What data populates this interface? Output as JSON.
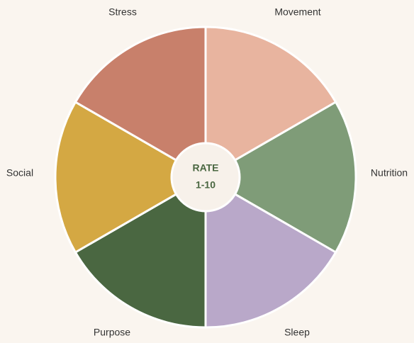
{
  "center": {
    "lines": [
      "RATE",
      "1-10"
    ]
  },
  "segments": [
    {
      "label": "Movement",
      "color": "#e8b49f"
    },
    {
      "label": "Nutrition",
      "color": "#7f9c78"
    },
    {
      "label": "Sleep",
      "color": "#b9a8c9"
    },
    {
      "label": "Purpose",
      "color": "#4a6741"
    },
    {
      "label": "Social",
      "color": "#d4a843"
    },
    {
      "label": "Stress",
      "color": "#c8806b"
    }
  ]
}
